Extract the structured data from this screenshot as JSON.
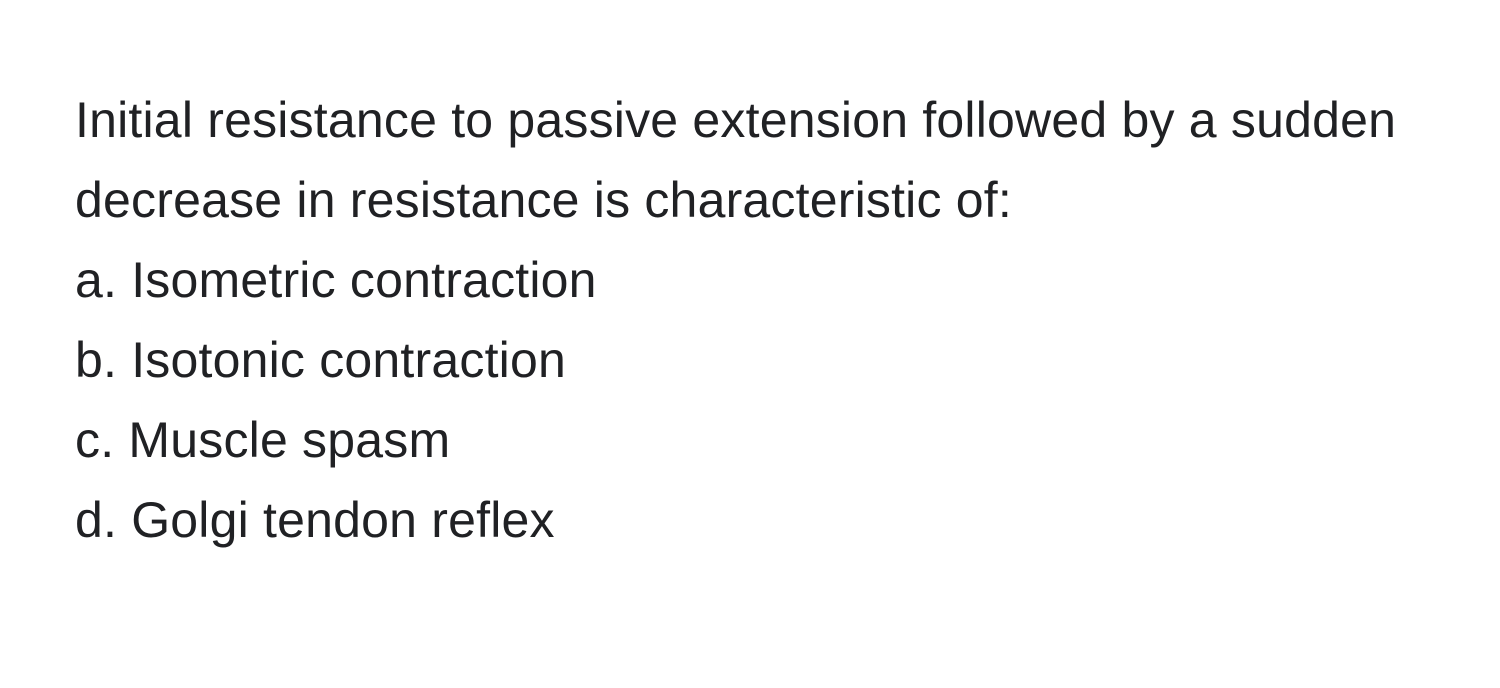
{
  "question": {
    "stem": "Initial resistance to passive extension followed by a sudden decrease in resistance is characteristic of:",
    "options": [
      {
        "letter": "a",
        "text": "Isometric contraction"
      },
      {
        "letter": "b",
        "text": "Isotonic contraction"
      },
      {
        "letter": "c",
        "text": "Muscle spasm"
      },
      {
        "letter": "d",
        "text": "Golgi tendon reflex"
      }
    ]
  },
  "styling": {
    "background_color": "#ffffff",
    "text_color": "#202124",
    "font_size_pt": 37,
    "line_height": 1.6,
    "font_weight": 400
  }
}
